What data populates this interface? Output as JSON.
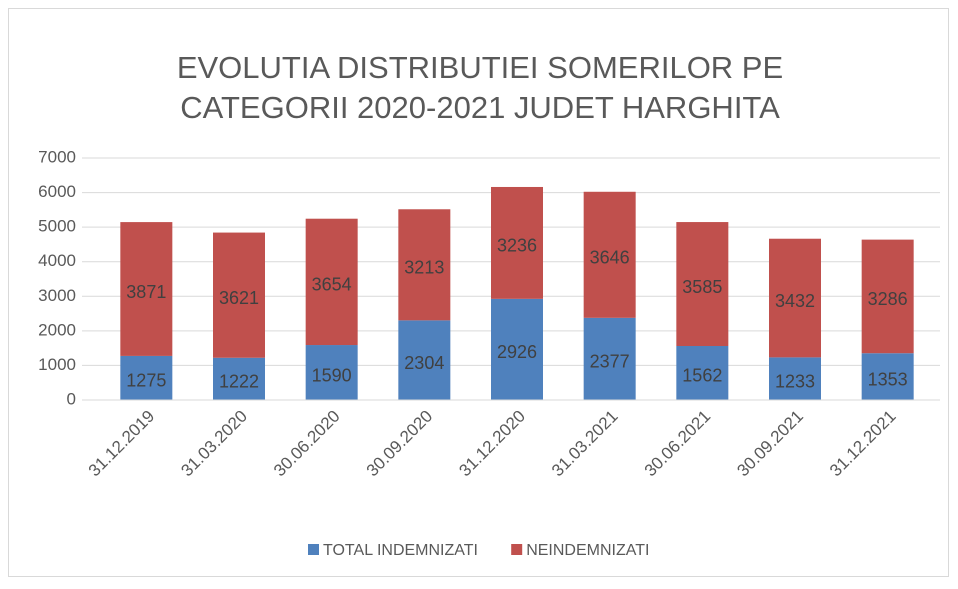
{
  "chart_data": {
    "type": "stacked_bar",
    "title": [
      "EVOLUTIA DISTRIBUTIEI SOMERILOR PE",
      "CATEGORII 2020-2021 JUDET HARGHITA"
    ],
    "categories": [
      "31.12.2019",
      "31.03.2020",
      "30.06.2020",
      "30.09.2020",
      "31.12.2020",
      "31.03.2021",
      "30.06.2021",
      "30.09.2021",
      "31.12.2021"
    ],
    "series": [
      {
        "name": "TOTAL INDEMNIZATI",
        "color": "#4f81bd",
        "values": [
          1275,
          1222,
          1590,
          2304,
          2926,
          2377,
          1562,
          1233,
          1353
        ]
      },
      {
        "name": "NEINDEMNIZATI",
        "color": "#c0504d",
        "values": [
          3871,
          3621,
          3654,
          3213,
          3236,
          3646,
          3585,
          3432,
          3286
        ]
      }
    ],
    "ylim": [
      0,
      7000
    ],
    "yticks": [
      0,
      1000,
      2000,
      3000,
      4000,
      5000,
      6000,
      7000
    ],
    "grid": true,
    "legend": "bottom"
  }
}
